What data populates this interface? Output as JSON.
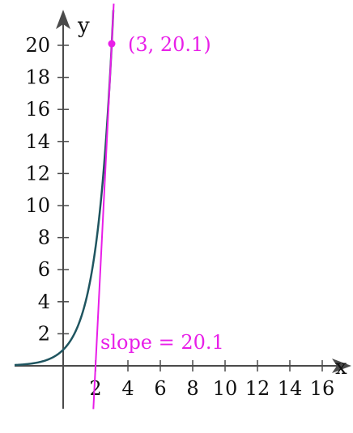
{
  "chart_data": {
    "type": "line",
    "title": "",
    "xlabel": "x",
    "ylabel": "y",
    "x_tick_labels": [
      "2",
      "4",
      "6",
      "8",
      "10",
      "12",
      "14",
      "16"
    ],
    "y_tick_labels": [
      "2",
      "4",
      "6",
      "8",
      "10",
      "12",
      "14",
      "16",
      "18",
      "20"
    ],
    "x_ticks": [
      2,
      4,
      6,
      8,
      10,
      12,
      14,
      16
    ],
    "y_ticks": [
      2,
      4,
      6,
      8,
      10,
      12,
      14,
      16,
      18,
      20
    ],
    "xlim": [
      -3,
      17.5
    ],
    "ylim": [
      -4.5,
      22.5
    ],
    "grid": false,
    "series": [
      {
        "kind": "curve",
        "function": "e^x",
        "color": "#1f5560",
        "x_range": [
          -3,
          3.1
        ]
      },
      {
        "kind": "tangent_line",
        "slope": 20.1,
        "through": [
          3,
          20.1
        ],
        "color": "#e81ee8"
      }
    ],
    "point": {
      "x": 3,
      "y": 20.1,
      "label": "(3, 20.1)",
      "color": "#e81ee8"
    },
    "annotation": {
      "text": "slope = 20.1",
      "color": "#e81ee8"
    }
  }
}
